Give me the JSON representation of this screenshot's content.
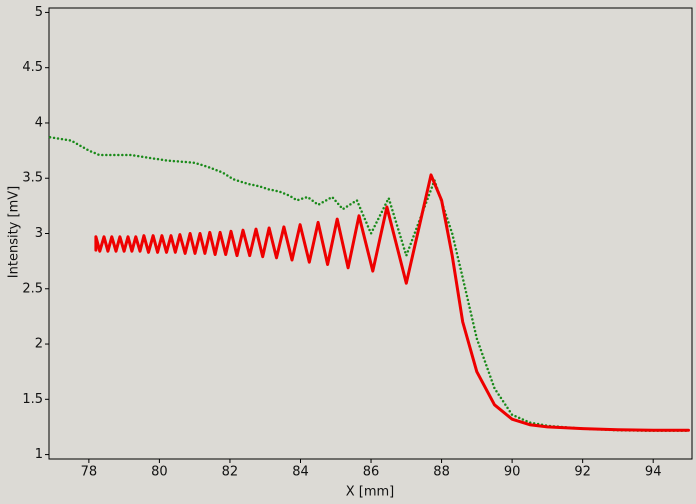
{
  "chart_data": {
    "type": "line",
    "xlabel": "X [mm]",
    "ylabel": "Intensity [mV]",
    "xlim": [
      76.87,
      95.1
    ],
    "ylim": [
      0.96,
      5.04
    ],
    "xticks": [
      78,
      80,
      82,
      84,
      86,
      88,
      90,
      92,
      94
    ],
    "yticks": [
      1,
      1.5,
      2,
      2.5,
      3,
      3.5,
      4,
      4.5,
      5
    ],
    "series": [
      {
        "color": "#1a8a1a",
        "linestyle": "dotted",
        "x": [
          76.9,
          77.5,
          78,
          78.3,
          78.8,
          79.2,
          79.6,
          80.2,
          80.6,
          81,
          81.4,
          81.8,
          82.1,
          82.5,
          82.8,
          83.1,
          83.4,
          83.7,
          83.9,
          84.2,
          84.5,
          84.9,
          85.2,
          85.6,
          86.0,
          86.5,
          87.0,
          87.8,
          88.3,
          88.6,
          89.0,
          89.5,
          90,
          90.5,
          91,
          92,
          93,
          94,
          95
        ],
        "values": [
          3.87,
          3.84,
          3.75,
          3.71,
          3.71,
          3.71,
          3.69,
          3.66,
          3.65,
          3.64,
          3.6,
          3.55,
          3.49,
          3.45,
          3.43,
          3.4,
          3.38,
          3.34,
          3.3,
          3.33,
          3.26,
          3.33,
          3.22,
          3.3,
          3.0,
          3.32,
          2.8,
          3.48,
          3.0,
          2.6,
          2.05,
          1.6,
          1.36,
          1.29,
          1.26,
          1.235,
          1.22,
          1.215,
          1.215
        ]
      },
      {
        "color": "#ee0000",
        "linestyle": "solid",
        "x": [
          78.2,
          78.2,
          78.31,
          78.43,
          78.54,
          78.65,
          78.77,
          78.88,
          79.0,
          79.11,
          79.22,
          79.33,
          79.45,
          79.56,
          79.69,
          79.82,
          79.95,
          80.07,
          80.2,
          80.33,
          80.45,
          80.58,
          80.73,
          80.87,
          81.01,
          81.15,
          81.29,
          81.43,
          81.58,
          81.72,
          81.88,
          82.03,
          82.2,
          82.37,
          82.56,
          82.74,
          82.93,
          83.11,
          83.32,
          83.53,
          83.76,
          83.99,
          84.25,
          84.5,
          84.77,
          85.04,
          85.35,
          85.66,
          86.05,
          86.45,
          87.0,
          87.7,
          88.0,
          88.3,
          88.6,
          89.0,
          89.5,
          90,
          90.5,
          91,
          92,
          93,
          94,
          95
        ],
        "values": [
          2.85,
          2.97,
          2.84,
          2.97,
          2.84,
          2.97,
          2.84,
          2.97,
          2.84,
          2.97,
          2.84,
          2.97,
          2.84,
          2.98,
          2.83,
          2.98,
          2.83,
          2.98,
          2.83,
          2.98,
          2.83,
          2.99,
          2.82,
          3.0,
          2.82,
          3.0,
          2.82,
          3.01,
          2.81,
          3.01,
          2.81,
          3.02,
          2.8,
          3.03,
          2.8,
          3.04,
          2.79,
          3.05,
          2.78,
          3.06,
          2.76,
          3.08,
          2.74,
          3.1,
          2.72,
          3.13,
          2.69,
          3.16,
          2.66,
          3.24,
          2.55,
          3.53,
          3.3,
          2.8,
          2.2,
          1.75,
          1.45,
          1.32,
          1.27,
          1.25,
          1.235,
          1.225,
          1.22,
          1.22
        ]
      }
    ]
  }
}
